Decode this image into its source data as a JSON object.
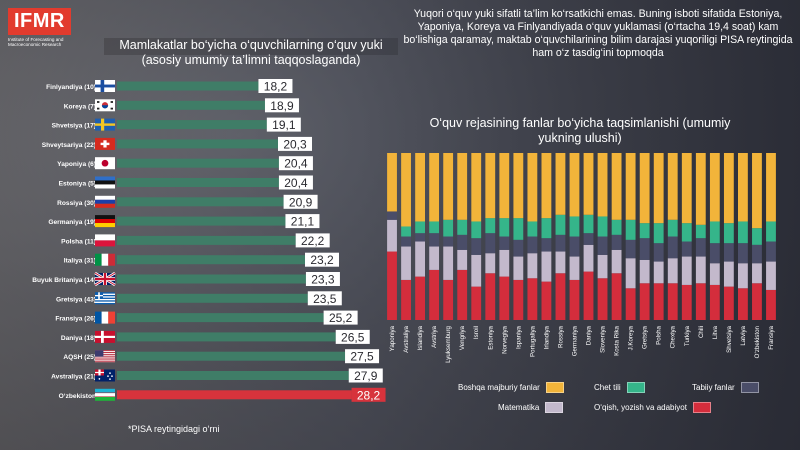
{
  "logo": {
    "name": "IFMR",
    "subtitle": "Institute of Forecasting and Macroeconomic Research"
  },
  "left_title": "Mamlakatlar bo‘yicha o‘quvchilarning o‘quv yuki (asosiy umumiy ta’limni taqqoslaganda)",
  "intro_text": "Yuqori o‘quv yuki sifatli ta’lim ko‘rsatkichi emas. Buning isboti sifatida Estoniya, Yaponiya, Koreya va Finlyandiyada o‘quv yuklamasi (o‘rtacha 19,4 soat) kam bo‘lishiga qaramay, maktab o‘quvchilarining bilim darajasi yuqoriligi PISA reytingida ham o‘z tasdig‘ini topmoqda",
  "right_title": "O‘quv rejasining fanlar bo‘yicha taqsimlanishi (umumiy yukning ulushi)",
  "footnote": "*PISA reytingidagi o‘rni",
  "colors": {
    "bar_green": "#3f7d67",
    "bar_red": "#d7333c",
    "value_box": "#ffffff",
    "value_text": "#2a2a30",
    "stack_other": "#f2b43a",
    "stack_foreign": "#35b58a",
    "stack_science": "#4a4d68",
    "stack_math": "#c3b9cc",
    "stack_reading": "#d42d3c"
  },
  "chart_data": [
    {
      "type": "bar",
      "orientation": "horizontal",
      "title": "Mamlakatlar bo‘yicha o‘quvchilarning o‘quv yuki (asosiy umumiy ta’limni taqqoslaganda)",
      "categories": [
        "Finlyandiya (10)",
        "Koreya (7)",
        "Shvetsiya (17)",
        "Shveytsariya (22)",
        "Yaponiya (6)",
        "Estoniya (5)",
        "Rossiya (30)",
        "Germaniya (19)",
        "Polsha (11)",
        "Italiya (31)",
        "Buyuk Britaniya (14)",
        "Gretsiya (43)",
        "Fransiya (26)",
        "Daniya (18)",
        "AQSH (25)",
        "Avstraliya (21)",
        "O‘zbekiston"
      ],
      "value_labels": [
        "18,2",
        "18,9",
        "19,1",
        "20,3",
        "20,4",
        "20,4",
        "20,9",
        "21,1",
        "22,2",
        "23,2",
        "23,3",
        "23,5",
        "25,2",
        "26,5",
        "27,5",
        "27,9",
        "28,2"
      ],
      "values": [
        18.2,
        18.9,
        19.1,
        20.3,
        20.4,
        20.4,
        20.9,
        21.1,
        22.2,
        23.2,
        23.3,
        23.5,
        25.2,
        26.5,
        27.5,
        27.9,
        28.2
      ],
      "flags": [
        "finland",
        "korea",
        "sweden",
        "switzerland",
        "japan",
        "estonia",
        "russia",
        "germany",
        "poland",
        "italy",
        "united-kingdom",
        "greece",
        "france",
        "denmark",
        "usa",
        "australia",
        "uzbekistan"
      ],
      "highlight_index": 16,
      "xlim": [
        0,
        29
      ]
    },
    {
      "type": "bar",
      "stacked": true,
      "percent": true,
      "title": "O‘quv rejasining fanlar bo‘yicha taqsimlanishi (umumiy yukning ulushi)",
      "categories": [
        "Yaponiya",
        "Avstraliya",
        "Islandiya",
        "Avstriya",
        "Lyuksemburg",
        "Vengriya",
        "Isroil",
        "Estoniya",
        "Norvegiya",
        "Ispaniya",
        "Portugaliya",
        "Irlandiya",
        "Rossiya",
        "Germaniya",
        "Daniya",
        "Sloveniya",
        "Kosta Rika",
        "J.Koreya",
        "Gretsiya",
        "Polsha",
        "Chexiya",
        "Turkiya",
        "Chili",
        "Litva",
        "Shvetsiya",
        "Latviya",
        "O‘zbekiston",
        "Fransiya"
      ],
      "series": [
        {
          "name": "O‘qish, yozish va adabiyot",
          "key": "reading",
          "values": [
            41,
            24,
            26,
            30,
            24,
            30,
            20,
            28,
            26,
            24,
            25,
            23,
            28,
            24,
            29,
            25,
            28,
            19,
            22,
            22,
            22,
            21,
            22,
            21,
            20,
            19,
            22,
            18
          ]
        },
        {
          "name": "Matematika",
          "key": "math",
          "values": [
            19,
            20,
            21,
            14,
            20,
            12,
            19,
            12,
            16,
            14,
            15,
            18,
            13,
            14,
            16,
            14,
            14,
            18,
            14,
            13,
            15,
            17,
            16,
            13,
            15,
            15,
            12,
            17
          ]
        },
        {
          "name": "Tabiiy fanlar",
          "key": "science",
          "values": [
            5,
            6,
            5,
            8,
            6,
            9,
            10,
            12,
            8,
            10,
            10,
            8,
            10,
            12,
            7,
            11,
            9,
            11,
            13,
            11,
            13,
            9,
            11,
            12,
            11,
            12,
            11,
            12
          ]
        },
        {
          "name": "Chet tili",
          "key": "foreign",
          "values": [
            0,
            6,
            7,
            7,
            10,
            9,
            10,
            9,
            11,
            13,
            9,
            12,
            12,
            12,
            11,
            12,
            9,
            12,
            9,
            12,
            10,
            11,
            8,
            13,
            12,
            13,
            10,
            12
          ]
        },
        {
          "name": "Boshqa majburiy fanlar",
          "key": "other",
          "values": [
            35,
            44,
            41,
            41,
            40,
            40,
            41,
            39,
            39,
            39,
            41,
            39,
            37,
            38,
            37,
            38,
            40,
            40,
            42,
            42,
            40,
            42,
            43,
            41,
            42,
            41,
            45,
            41
          ]
        }
      ],
      "legend": [
        {
          "name": "Boshqa majburiy fanlar",
          "key": "other"
        },
        {
          "name": "Chet tili",
          "key": "foreign"
        },
        {
          "name": "Tabiiy fanlar",
          "key": "science"
        },
        {
          "name": "Matematika",
          "key": "math"
        },
        {
          "name": "O‘qish, yozish va adabiyot",
          "key": "reading"
        }
      ],
      "ylim": [
        0,
        100
      ]
    }
  ]
}
